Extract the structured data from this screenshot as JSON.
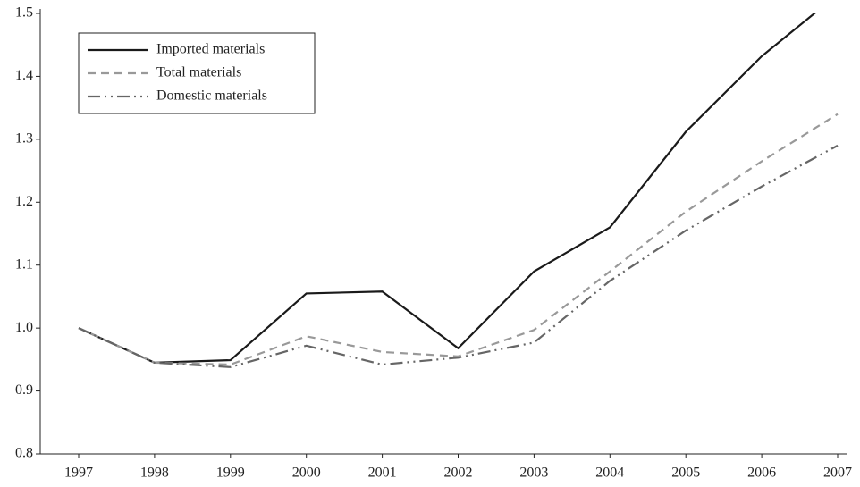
{
  "chart_data": {
    "type": "line",
    "categories": [
      "1997",
      "1998",
      "1999",
      "2000",
      "2001",
      "2002",
      "2003",
      "2004",
      "2005",
      "2006",
      "2007"
    ],
    "series": [
      {
        "name": "Imported materials",
        "color": "#1a1a1a",
        "style": "solid",
        "values": [
          1.0,
          0.945,
          0.949,
          1.055,
          1.058,
          0.968,
          1.09,
          1.16,
          1.312,
          1.432,
          1.53
        ]
      },
      {
        "name": "Total materials",
        "color": "#999999",
        "style": "dashed",
        "values": [
          1.0,
          0.945,
          0.942,
          0.987,
          0.962,
          0.955,
          0.997,
          1.09,
          1.185,
          1.265,
          1.34
        ]
      },
      {
        "name": "Domestic materials",
        "color": "#666666",
        "style": "dashdotdot",
        "values": [
          1.0,
          0.945,
          0.938,
          0.972,
          0.942,
          0.953,
          0.977,
          1.075,
          1.155,
          1.225,
          1.29
        ]
      }
    ],
    "ylim": [
      0.8,
      1.5
    ],
    "yticks": [
      0.8,
      0.9,
      {
        "value": 1,
        "label": "1.0"
      },
      1.1,
      1.2,
      1.3,
      1.4,
      1.5
    ],
    "grid": false,
    "legend": "upper left"
  }
}
